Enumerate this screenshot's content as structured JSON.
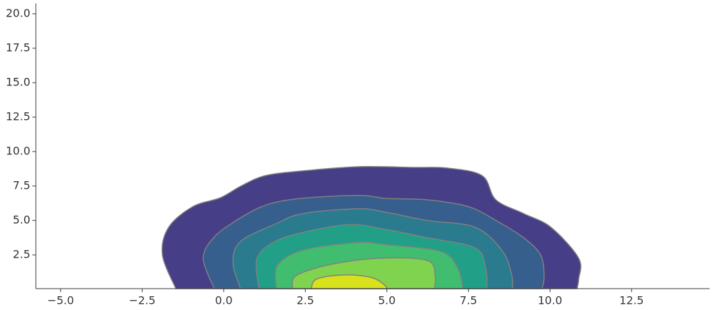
{
  "chart_data": {
    "type": "contour",
    "xlim": [
      -5.76,
      14.89
    ],
    "ylim": [
      0.05,
      20.75
    ],
    "xticks": [
      {
        "value": -5,
        "label": "−5.0"
      },
      {
        "value": -2.5,
        "label": "−2.5"
      },
      {
        "value": 0,
        "label": "0.0"
      },
      2.5,
      {
        "value": 5,
        "label": "5.0"
      },
      7.5,
      {
        "value": 10,
        "label": "10.0"
      },
      12.5
    ],
    "yticks": [
      2.5,
      {
        "value": 5,
        "label": "5.0"
      },
      7.5,
      {
        "value": 10,
        "label": "10.0"
      },
      12.5,
      {
        "value": 15,
        "label": "15.0"
      },
      17.5,
      {
        "value": 20,
        "label": "20.0"
      }
    ],
    "line_color": "#808080",
    "series": [
      {
        "color": "#463f87",
        "x": [
          -1.47,
          -1.88,
          -1.69,
          -0.95,
          -0.1,
          0.53,
          1.27,
          2.43,
          4.12,
          5.81,
          6.86,
          7.92,
          8.34,
          9.19,
          10.03,
          10.88,
          10.88,
          10.83
        ],
        "y": [
          0.05,
          2.5,
          4.5,
          6.0,
          6.65,
          7.5,
          8.25,
          8.6,
          8.9,
          8.85,
          8.8,
          8.25,
          6.5,
          5.5,
          4.5,
          2.25,
          0.75,
          0.05
        ]
      },
      {
        "color": "#365f8d",
        "x": [
          -0.29,
          -0.63,
          -0.31,
          0.32,
          1.16,
          2.01,
          3.27,
          4.33,
          4.96,
          6.23,
          7.5,
          8.34,
          9.19,
          9.71,
          9.82,
          9.76
        ],
        "y": [
          0.05,
          2.25,
          3.75,
          4.9,
          6.0,
          6.5,
          6.75,
          6.8,
          6.6,
          6.5,
          6.0,
          5.0,
          3.75,
          2.5,
          1.0,
          0.05
        ]
      },
      {
        "color": "#2a7b8e",
        "x": [
          0.51,
          0.28,
          0.53,
          1.59,
          2.43,
          4.12,
          4.96,
          6.23,
          7.71,
          8.55,
          8.83,
          8.85
        ],
        "y": [
          0.05,
          2.0,
          3.5,
          4.75,
          5.5,
          5.85,
          5.6,
          5.0,
          4.5,
          2.75,
          1.0,
          0.05
        ]
      },
      {
        "color": "#21a087",
        "x": [
          1.08,
          1.02,
          1.59,
          2.64,
          3.91,
          4.96,
          6.23,
          7.71,
          8.03,
          8.07
        ],
        "y": [
          0.05,
          2.25,
          3.5,
          4.25,
          4.7,
          4.35,
          3.75,
          3.0,
          1.5,
          0.05
        ]
      },
      {
        "color": "#40bd6f",
        "x": [
          1.61,
          1.65,
          2.43,
          4.12,
          4.96,
          6.65,
          7.18,
          7.33
        ],
        "y": [
          0.05,
          1.75,
          2.85,
          3.4,
          3.25,
          2.75,
          1.5,
          0.05
        ]
      },
      {
        "color": "#7fd34e",
        "x": [
          2.11,
          2.22,
          3.27,
          4.75,
          6.23,
          6.48,
          6.46
        ],
        "y": [
          0.05,
          1.0,
          1.8,
          2.25,
          2.1,
          1.0,
          0.05
        ]
      },
      {
        "color": "#d8e21c",
        "x": [
          2.68,
          2.85,
          3.7,
          4.54,
          4.96,
          4.98
        ],
        "y": [
          0.05,
          0.75,
          1.05,
          0.85,
          0.25,
          0.05
        ]
      }
    ]
  }
}
